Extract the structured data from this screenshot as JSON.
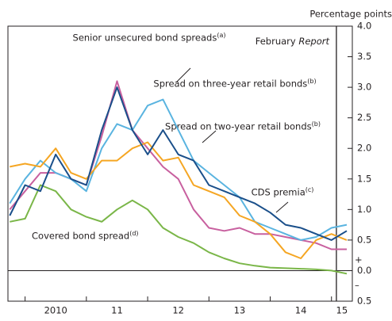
{
  "chart_data": {
    "type": "line",
    "y_axis_label": "Percentage points",
    "x": [
      2009.75,
      2010.0,
      2010.25,
      2010.5,
      2010.75,
      2011.0,
      2011.25,
      2011.5,
      2011.75,
      2012.0,
      2012.25,
      2012.5,
      2012.75,
      2013.0,
      2013.25,
      2013.5,
      2013.75,
      2014.0,
      2014.25,
      2014.5,
      2014.75,
      2015.0,
      2015.25
    ],
    "series": [
      {
        "name": "Covered bond spread",
        "note": "(d)",
        "color": "#7ab648",
        "values": [
          0.8,
          0.85,
          1.4,
          1.3,
          1.0,
          0.88,
          0.8,
          1.0,
          1.15,
          1.0,
          0.7,
          0.55,
          0.45,
          0.3,
          0.2,
          0.12,
          0.08,
          0.05,
          0.04,
          0.03,
          0.02,
          0.0,
          -0.05
        ]
      },
      {
        "name": "Senior unsecured bond spreads",
        "note": "(a)",
        "color": "#c8609f",
        "values": [
          1.0,
          1.3,
          1.6,
          1.6,
          1.5,
          1.4,
          2.2,
          3.1,
          2.3,
          2.0,
          1.7,
          1.5,
          1.0,
          0.7,
          0.65,
          0.7,
          0.6,
          0.6,
          0.55,
          0.5,
          0.45,
          0.35,
          0.35
        ]
      },
      {
        "name": "Spread on three-year retail bonds",
        "note": "(b)",
        "color": "#5ab4e0",
        "values": [
          1.1,
          1.5,
          1.8,
          1.6,
          1.5,
          1.3,
          2.0,
          2.4,
          2.3,
          2.7,
          2.8,
          2.3,
          1.8,
          1.6,
          1.4,
          1.2,
          0.8,
          0.7,
          0.6,
          0.5,
          0.55,
          0.7,
          0.75
        ]
      },
      {
        "name": "Spread on two-year retail bonds",
        "note": "(b)",
        "color": "#f5a623",
        "values": [
          1.7,
          1.75,
          1.7,
          2.0,
          1.6,
          1.5,
          1.8,
          1.8,
          2.0,
          2.1,
          1.8,
          1.85,
          1.4,
          1.3,
          1.2,
          0.9,
          0.8,
          0.6,
          0.3,
          0.2,
          0.5,
          0.6,
          0.5
        ]
      },
      {
        "name": "CDS premia",
        "note": "(c)",
        "color": "#1a4f8a",
        "values": [
          0.9,
          1.4,
          1.3,
          1.9,
          1.5,
          1.4,
          2.3,
          3.0,
          2.3,
          1.9,
          2.3,
          1.9,
          1.8,
          1.4,
          1.3,
          1.2,
          1.1,
          0.95,
          0.75,
          0.7,
          0.6,
          0.5,
          0.65
        ]
      }
    ],
    "xlim": [
      2009.72,
      2015.34
    ],
    "xticks": [
      {
        "value": 2010.5,
        "label": "2010"
      },
      {
        "value": 2011.5,
        "label": "11"
      },
      {
        "value": 2012.5,
        "label": "12"
      },
      {
        "value": 2013.5,
        "label": "13"
      },
      {
        "value": 2014.5,
        "label": "14"
      },
      {
        "value": 2015.17,
        "label": "15"
      }
    ],
    "xtick_marks": [
      2010,
      2011,
      2012,
      2013,
      2014,
      2015
    ],
    "ylim": [
      -0.5,
      4.0
    ],
    "yticks": [
      {
        "value": -0.5,
        "label": "0.5"
      },
      {
        "value": 0,
        "label": "0.0"
      },
      0.5,
      {
        "value": 1,
        "label": "1.0"
      },
      1.5,
      {
        "value": 2,
        "label": "2.0"
      },
      2.5,
      {
        "value": 3,
        "label": "3.0"
      },
      3.5,
      {
        "value": 4,
        "label": "4.0"
      }
    ],
    "sign_labels": [
      "+",
      "–"
    ],
    "report_line": {
      "text": "February",
      "emphasis": "Report",
      "x": 2015.08
    }
  }
}
